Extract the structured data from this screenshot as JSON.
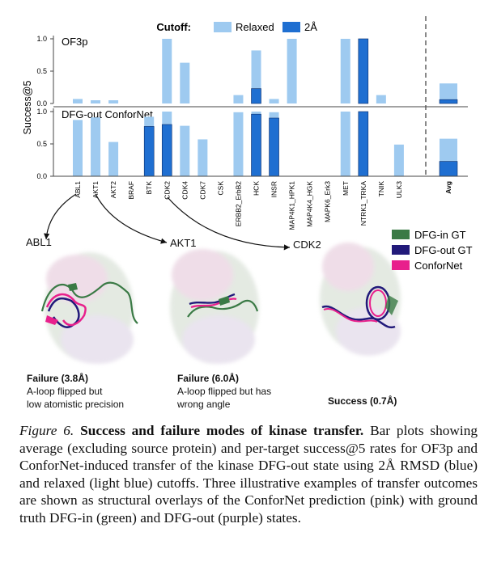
{
  "colors": {
    "relaxed": "#9ecaf0",
    "strict": "#1f6fd1",
    "dfg_in": "#3a7a45",
    "dfg_out": "#221a7a",
    "confornet": "#e8208c"
  },
  "legend": {
    "title": "Cutoff:",
    "relaxed": "Relaxed",
    "strict": "2Å"
  },
  "chart_data": {
    "type": "bar",
    "ylabel": "Success@5",
    "ylim": [
      0,
      1
    ],
    "yticks": [
      "0.0",
      "0.5",
      "1.0"
    ],
    "categories": [
      "ABL1",
      "AKT1",
      "AKT2",
      "BRAF",
      "BTK",
      "CDK2",
      "CDK4",
      "CDK7",
      "CSK",
      "ERBB2_ErbB2",
      "HCK",
      "INSR",
      "MAP4K1_HPK1",
      "MAP4K4_HGK",
      "MAPK6_Erk3",
      "MET",
      "NTRK1_TRKA",
      "TNIK",
      "ULK3"
    ],
    "avg_label": "Avg",
    "panels": [
      {
        "name": "OF3p",
        "series": [
          {
            "name": "Relaxed",
            "values": [
              0.07,
              0.05,
              0.05,
              0,
              0,
              1.0,
              0.63,
              0,
              0,
              0.13,
              0.82,
              0.07,
              1.0,
              0,
              0,
              1.0,
              1.0,
              0.13,
              0
            ],
            "avg": 0.31
          },
          {
            "name": "2Å",
            "values": [
              0,
              0,
              0,
              0,
              0,
              0,
              0,
              0,
              0,
              0,
              0.23,
              0,
              0,
              0,
              0,
              0,
              1.0,
              0,
              0
            ],
            "avg": 0.06
          }
        ]
      },
      {
        "name": "DFG-out ConforNet",
        "series": [
          {
            "name": "Relaxed",
            "values": [
              0.87,
              0.91,
              0.53,
              0,
              0.92,
              1.0,
              0.78,
              0.57,
              0,
              0.99,
              1.0,
              0.99,
              0,
              0,
              0,
              1.0,
              1.0,
              0,
              0.49
            ],
            "avg": 0.58
          },
          {
            "name": "2Å",
            "values": [
              0,
              0,
              0,
              0,
              0.77,
              0.8,
              0,
              0,
              0,
              0,
              0.96,
              0.9,
              0,
              0,
              0,
              0,
              1.0,
              0,
              0
            ],
            "avg": 0.23
          }
        ]
      }
    ]
  },
  "structure_legend": [
    "DFG-in GT",
    "DFG-out GT",
    "ConforNet"
  ],
  "examples": [
    {
      "name": "ABL1",
      "result": "Failure (3.8Å)",
      "line1": "A-loop flipped but",
      "line2": "low atomistic precision"
    },
    {
      "name": "AKT1",
      "result": "Failure (6.0Å)",
      "line1": "A-loop flipped but has",
      "line2": "wrong angle"
    },
    {
      "name": "CDK2",
      "result": "Success (0.7Å)",
      "line1": "",
      "line2": ""
    }
  ],
  "caption": {
    "label": "Figure 6.",
    "title": "Success and failure modes of kinase transfer.",
    "body": "Bar plots showing average (excluding source protein) and per-target success@5 rates for OF3p and ConforNet-induced transfer of the kinase DFG-out state using 2Å RMSD (blue) and relaxed (light blue) cutoffs. Three illustrative examples of transfer outcomes are shown as structural overlays of the ConforNet prediction (pink) with ground truth DFG-in (green) and DFG-out (purple) states."
  }
}
